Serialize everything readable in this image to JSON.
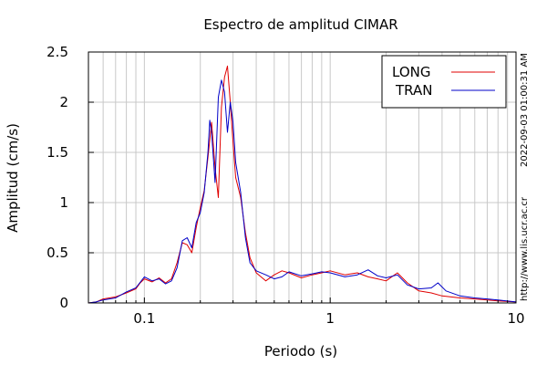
{
  "chart_data": {
    "type": "line",
    "title": "Espectro de amplitud CIMAR",
    "xlabel": "Periodo (s)",
    "ylabel": "Amplitud (cm/s)",
    "xscale": "log",
    "xlim": [
      0.05,
      10
    ],
    "ylim": [
      0,
      2.5
    ],
    "grid": true,
    "legend_position": "top-right",
    "xticks": [
      {
        "value": 0.1,
        "label": "0.1"
      },
      {
        "value": 1,
        "label": "1"
      },
      {
        "value": 10,
        "label": "10"
      }
    ],
    "yticks": [
      {
        "value": 0,
        "label": "0"
      },
      {
        "value": 0.5,
        "label": "0.5"
      },
      {
        "value": 1,
        "label": "1"
      },
      {
        "value": 1.5,
        "label": "1.5"
      },
      {
        "value": 2,
        "label": "2"
      },
      {
        "value": 2.5,
        "label": "2.5"
      }
    ],
    "series": [
      {
        "name": "LONG",
        "color": "#e00000",
        "points": [
          [
            0.05,
            0.0
          ],
          [
            0.055,
            0.01
          ],
          [
            0.06,
            0.04
          ],
          [
            0.07,
            0.06
          ],
          [
            0.08,
            0.1
          ],
          [
            0.09,
            0.14
          ],
          [
            0.095,
            0.2
          ],
          [
            0.1,
            0.24
          ],
          [
            0.11,
            0.21
          ],
          [
            0.12,
            0.25
          ],
          [
            0.13,
            0.2
          ],
          [
            0.14,
            0.24
          ],
          [
            0.15,
            0.4
          ],
          [
            0.16,
            0.6
          ],
          [
            0.17,
            0.58
          ],
          [
            0.18,
            0.5
          ],
          [
            0.19,
            0.75
          ],
          [
            0.2,
            0.95
          ],
          [
            0.21,
            1.12
          ],
          [
            0.22,
            1.45
          ],
          [
            0.23,
            1.8
          ],
          [
            0.24,
            1.35
          ],
          [
            0.25,
            1.05
          ],
          [
            0.26,
            1.95
          ],
          [
            0.27,
            2.25
          ],
          [
            0.28,
            2.36
          ],
          [
            0.29,
            2.0
          ],
          [
            0.3,
            1.6
          ],
          [
            0.31,
            1.25
          ],
          [
            0.33,
            1.05
          ],
          [
            0.35,
            0.7
          ],
          [
            0.37,
            0.45
          ],
          [
            0.4,
            0.3
          ],
          [
            0.45,
            0.22
          ],
          [
            0.5,
            0.28
          ],
          [
            0.55,
            0.32
          ],
          [
            0.6,
            0.3
          ],
          [
            0.7,
            0.25
          ],
          [
            0.8,
            0.28
          ],
          [
            0.9,
            0.3
          ],
          [
            1.0,
            0.32
          ],
          [
            1.2,
            0.28
          ],
          [
            1.4,
            0.3
          ],
          [
            1.6,
            0.26
          ],
          [
            1.8,
            0.24
          ],
          [
            2.0,
            0.22
          ],
          [
            2.3,
            0.3
          ],
          [
            2.6,
            0.2
          ],
          [
            3.0,
            0.12
          ],
          [
            3.5,
            0.1
          ],
          [
            4.0,
            0.07
          ],
          [
            5.0,
            0.05
          ],
          [
            6.0,
            0.04
          ],
          [
            7.0,
            0.03
          ],
          [
            8.0,
            0.02
          ],
          [
            10.0,
            0.01
          ]
        ]
      },
      {
        "name": "TRAN",
        "color": "#0000c8",
        "points": [
          [
            0.05,
            0.0
          ],
          [
            0.055,
            0.01
          ],
          [
            0.06,
            0.03
          ],
          [
            0.07,
            0.05
          ],
          [
            0.08,
            0.11
          ],
          [
            0.09,
            0.15
          ],
          [
            0.1,
            0.26
          ],
          [
            0.11,
            0.22
          ],
          [
            0.12,
            0.24
          ],
          [
            0.13,
            0.19
          ],
          [
            0.14,
            0.22
          ],
          [
            0.15,
            0.35
          ],
          [
            0.16,
            0.62
          ],
          [
            0.17,
            0.65
          ],
          [
            0.18,
            0.55
          ],
          [
            0.19,
            0.8
          ],
          [
            0.2,
            0.9
          ],
          [
            0.21,
            1.1
          ],
          [
            0.22,
            1.5
          ],
          [
            0.225,
            1.82
          ],
          [
            0.23,
            1.7
          ],
          [
            0.24,
            1.2
          ],
          [
            0.25,
            2.05
          ],
          [
            0.26,
            2.22
          ],
          [
            0.27,
            2.1
          ],
          [
            0.28,
            1.7
          ],
          [
            0.29,
            2.0
          ],
          [
            0.3,
            1.8
          ],
          [
            0.31,
            1.4
          ],
          [
            0.33,
            1.1
          ],
          [
            0.35,
            0.65
          ],
          [
            0.37,
            0.4
          ],
          [
            0.4,
            0.32
          ],
          [
            0.45,
            0.28
          ],
          [
            0.5,
            0.24
          ],
          [
            0.55,
            0.26
          ],
          [
            0.6,
            0.31
          ],
          [
            0.7,
            0.27
          ],
          [
            0.8,
            0.29
          ],
          [
            0.9,
            0.31
          ],
          [
            1.0,
            0.3
          ],
          [
            1.2,
            0.26
          ],
          [
            1.4,
            0.28
          ],
          [
            1.6,
            0.33
          ],
          [
            1.8,
            0.27
          ],
          [
            2.0,
            0.25
          ],
          [
            2.3,
            0.28
          ],
          [
            2.6,
            0.18
          ],
          [
            3.0,
            0.14
          ],
          [
            3.5,
            0.15
          ],
          [
            3.8,
            0.2
          ],
          [
            4.2,
            0.12
          ],
          [
            5.0,
            0.07
          ],
          [
            6.0,
            0.05
          ],
          [
            7.0,
            0.04
          ],
          [
            8.0,
            0.03
          ],
          [
            10.0,
            0.01
          ]
        ]
      }
    ],
    "side_text": [
      "2022-09-03 01:00:31 AM",
      "http://www.lis.ucr.ac.cr"
    ]
  }
}
